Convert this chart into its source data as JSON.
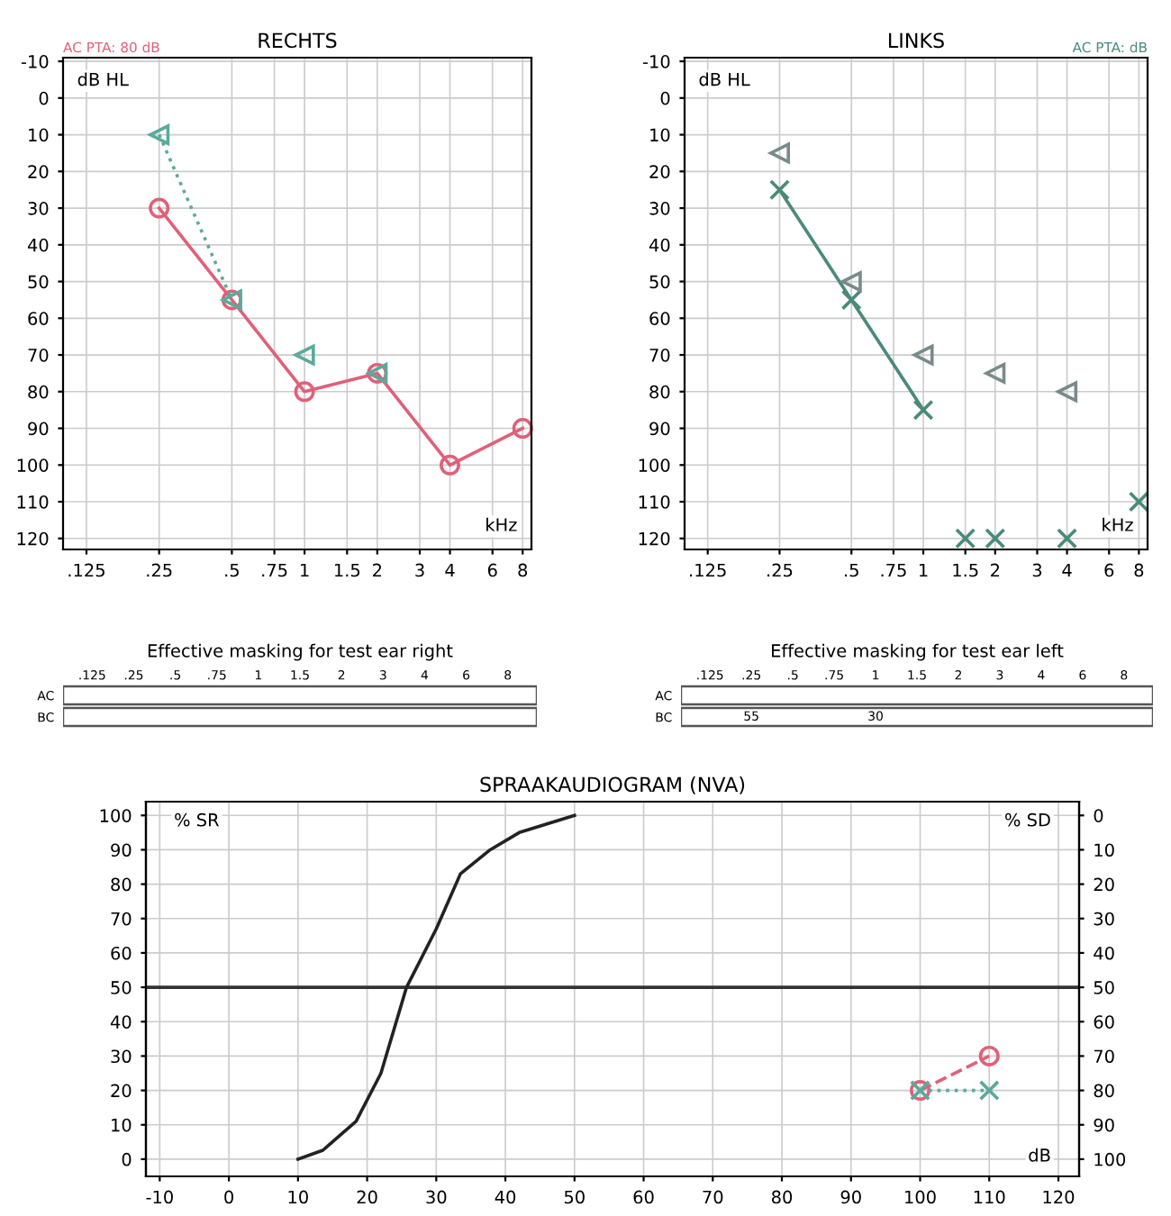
{
  "chart_data": [
    {
      "type": "line",
      "title": "RECHTS",
      "xlabel": "kHz",
      "ylabel": "dB HL",
      "annotations": [
        "AC PTA: 80 dB"
      ],
      "log": "x",
      "grid": true,
      "xlim": [
        0.1,
        8.7
      ],
      "xticks": [
        {
          "value": 0.125,
          "label": ".125"
        },
        {
          "value": 0.25,
          "label": ".25"
        },
        {
          "value": 0.5,
          "label": ".5"
        },
        {
          "value": 0.75,
          "label": ".75"
        },
        1,
        1.5,
        2,
        3,
        4,
        6,
        8
      ],
      "ylim": [
        123,
        -11
      ],
      "yticks": [
        -10,
        0,
        10,
        20,
        30,
        40,
        50,
        60,
        70,
        80,
        90,
        100,
        110,
        120
      ],
      "series": [
        {
          "type": "line",
          "color": "#e0607a",
          "marker": "circle",
          "line_style": "solid",
          "x": [
            0.25,
            0.5,
            1,
            2,
            4,
            8
          ],
          "values": [
            30,
            55,
            80,
            75,
            100,
            90
          ]
        },
        {
          "type": "line",
          "color": "#5aaa9a",
          "marker": "triangle",
          "line_style": "dotted",
          "x": [
            0.25,
            0.5,
            0.75,
            1,
            1.5,
            2
          ],
          "values": [
            10,
            55,
            null,
            70,
            null,
            75
          ]
        }
      ]
    },
    {
      "type": "line",
      "title": "LINKS",
      "xlabel": "kHz",
      "ylabel": "dB HL",
      "annotations": [
        "AC PTA: dB"
      ],
      "log": "x",
      "grid": true,
      "xlim": [
        0.1,
        8.7
      ],
      "xticks": [
        {
          "value": 0.125,
          "label": ".125"
        },
        {
          "value": 0.25,
          "label": ".25"
        },
        {
          "value": 0.5,
          "label": ".5"
        },
        {
          "value": 0.75,
          "label": ".75"
        },
        1,
        1.5,
        2,
        3,
        4,
        6,
        8
      ],
      "ylim": [
        123,
        -11
      ],
      "yticks": [
        -10,
        0,
        10,
        20,
        30,
        40,
        50,
        60,
        70,
        80,
        90,
        100,
        110,
        120
      ],
      "series": [
        {
          "type": "line",
          "color": "#4a8a7a",
          "marker": "cross",
          "line_style": "solid",
          "x": [
            0.25,
            0.5,
            1
          ],
          "values": [
            25,
            55,
            85
          ]
        },
        {
          "type": "scatter",
          "color": "#4a8a7a",
          "marker": "cross",
          "x": [
            1.5,
            2,
            4,
            8
          ],
          "values": [
            120,
            120,
            120,
            110
          ]
        },
        {
          "type": "scatter",
          "color": "#7a8a8a",
          "marker": "triangle",
          "x": [
            0.25,
            0.5,
            1,
            2,
            4
          ],
          "values": [
            15,
            50,
            70,
            75,
            80
          ]
        }
      ]
    },
    {
      "type": "other",
      "title": "Effective masking for test ear right",
      "categories": [
        ".125",
        ".25",
        ".5",
        ".75",
        "1",
        "1.5",
        "2",
        "3",
        "4",
        "6",
        "8"
      ],
      "y_categories": [
        "AC",
        "BC"
      ],
      "cell_labels": [
        [
          null,
          null,
          null,
          null,
          null,
          null,
          null,
          null,
          null,
          null,
          null
        ],
        [
          null,
          null,
          null,
          null,
          null,
          null,
          null,
          null,
          null,
          null,
          null
        ]
      ]
    },
    {
      "type": "other",
      "title": "Effective masking for test ear left",
      "categories": [
        ".125",
        ".25",
        ".5",
        ".75",
        "1",
        "1.5",
        "2",
        "3",
        "4",
        "6",
        "8"
      ],
      "y_categories": [
        "AC",
        "BC"
      ],
      "cell_labels": [
        [
          null,
          null,
          null,
          null,
          null,
          null,
          null,
          null,
          null,
          null,
          null
        ],
        [
          null,
          "55",
          null,
          null,
          "30",
          null,
          null,
          null,
          null,
          null,
          null
        ]
      ]
    },
    {
      "type": "line",
      "title": "SPRAAKAUDIOGRAM (NVA)",
      "xlabel": "dB",
      "ylabel": "% SR",
      "y2label": "% SD",
      "grid": true,
      "xlim": [
        -12,
        123
      ],
      "xticks": [
        -10,
        0,
        10,
        20,
        30,
        40,
        50,
        60,
        70,
        80,
        90,
        100,
        110,
        120
      ],
      "ylim": [
        -5,
        104
      ],
      "yticks": [
        0,
        10,
        20,
        30,
        40,
        50,
        60,
        70,
        80,
        90,
        100
      ],
      "y2lim": [
        105,
        -4
      ],
      "y2ticks": [
        0,
        10,
        20,
        30,
        40,
        50,
        60,
        70,
        80,
        90,
        100
      ],
      "ref_lines": [
        {
          "axis": "y",
          "value": 50,
          "color": "#333333"
        }
      ],
      "series": [
        {
          "type": "line",
          "color": "#222222",
          "marker": "none",
          "line_style": "solid",
          "x": [
            10,
            13.6,
            18.4,
            22,
            25.7,
            30,
            33.5,
            37.8,
            42,
            50
          ],
          "values": [
            0,
            2.6,
            11,
            25,
            50,
            67,
            83,
            90,
            95,
            100
          ]
        },
        {
          "type": "line",
          "axis": "y2",
          "color": "#e0607a",
          "marker": "circle",
          "line_style": "dashed",
          "x": [
            100,
            110
          ],
          "values": [
            80,
            70
          ]
        },
        {
          "type": "line",
          "axis": "y2",
          "color": "#5aaa9a",
          "marker": "cross",
          "line_style": "dotted",
          "x": [
            100,
            110
          ],
          "values": [
            80,
            80
          ]
        }
      ]
    }
  ]
}
